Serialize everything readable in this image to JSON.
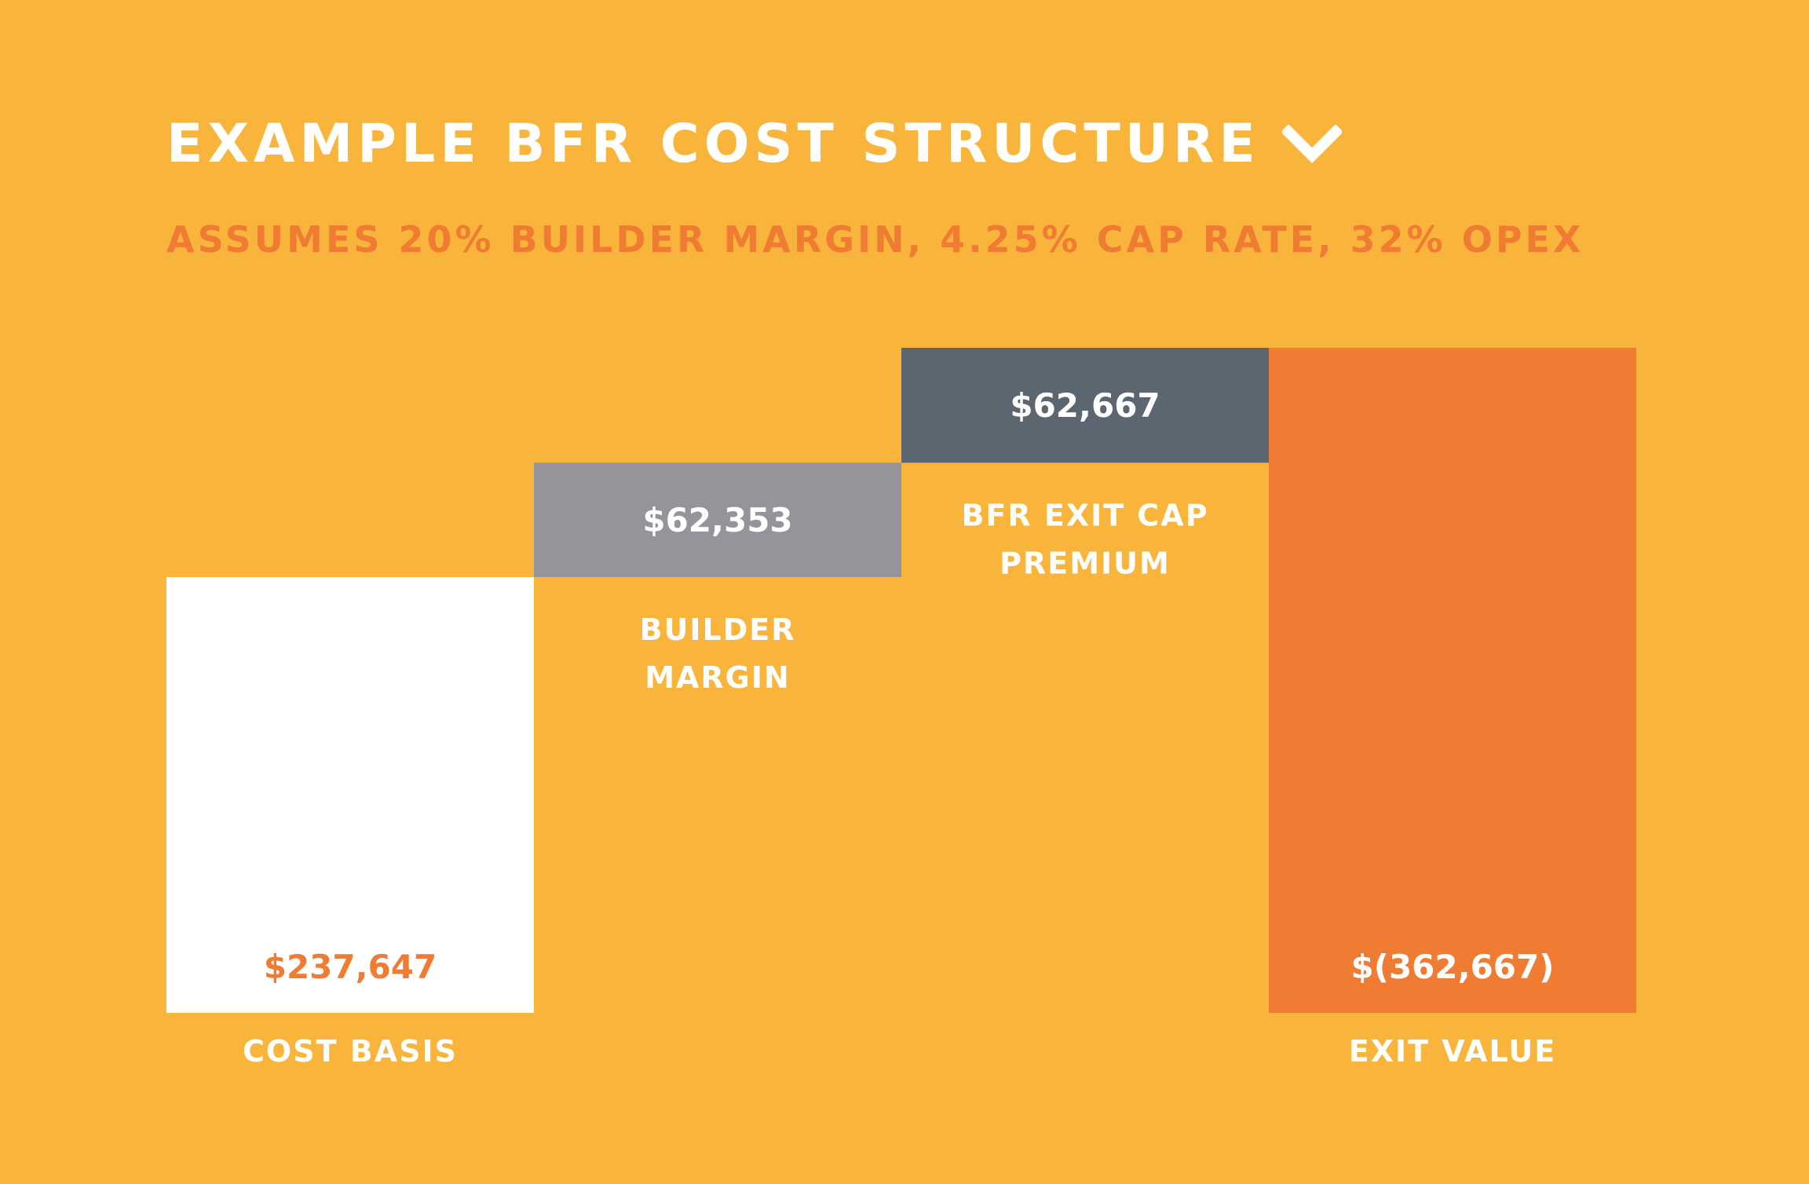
{
  "title": "EXAMPLE BFR COST STRUCTURE",
  "subtitle": "ASSUMES 20% BUILDER MARGIN, 4.25% CAP RATE, 32% OPEX",
  "icons": {
    "title_icon": "chevron-down-icon"
  },
  "colors": {
    "background": "#F9B53B",
    "cost_basis": "#FFFFFF",
    "builder_margin": "#93959B",
    "exit_cap_premium": "#5B6670",
    "exit_value": "#F07B32",
    "label_text": "#FFFFFF",
    "accent_text": "#F07B32"
  },
  "chart_data": {
    "type": "bar",
    "subtype": "waterfall",
    "categories": [
      "COST BASIS",
      "BUILDER MARGIN",
      "BFR EXIT CAP PREMIUM",
      "EXIT VALUE"
    ],
    "category_label_lines": [
      [
        "COST BASIS"
      ],
      [
        "BUILDER",
        "MARGIN"
      ],
      [
        "BFR EXIT CAP",
        "PREMIUM"
      ],
      [
        "EXIT VALUE"
      ]
    ],
    "values": [
      237647,
      62353,
      62667,
      362667
    ],
    "value_labels": [
      "$237,647",
      "$62,353",
      "$62,667",
      "$(362,667)"
    ],
    "bar_kinds": [
      "total",
      "increment",
      "increment",
      "total"
    ],
    "ylim": [
      0,
      362667
    ],
    "grid": false,
    "legend": "none"
  }
}
